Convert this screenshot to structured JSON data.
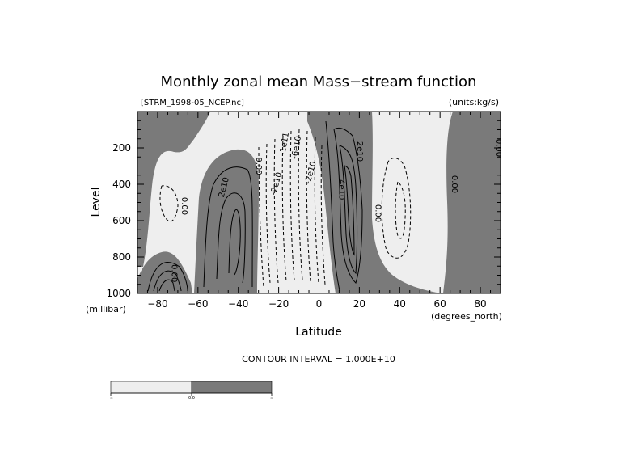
{
  "chart_data": {
    "type": "contour",
    "title": "Monthly zonal mean Mass−stream function",
    "file_label": "[STRM_1998-05_NCEP.nc]",
    "units_label": "(units:kg/s)",
    "xlabel": "Latitude",
    "x_unit_label": "(degrees_north)",
    "ylabel": "Level",
    "y_unit_label": "(millibar)",
    "xlim": [
      -90,
      90
    ],
    "ylim": [
      1000,
      0
    ],
    "x_ticks": [
      -80,
      -60,
      -40,
      -20,
      0,
      20,
      40,
      60,
      80
    ],
    "y_ticks": [
      200,
      400,
      600,
      800,
      1000
    ],
    "contour_interval_text": "CONTOUR INTERVAL = 1.000E+10",
    "fill_colors": {
      "negative": "#eeeeee",
      "positive": "#7a7a7a"
    },
    "colorbar": {
      "min_label": "-∞",
      "mid_label": "0.0",
      "max_label": "∞"
    },
    "contour_labels": [
      {
        "text": "0.00",
        "lat": -68,
        "level": 520,
        "rotate": 90
      },
      {
        "text": "0.00",
        "lat": -73,
        "level": 890,
        "rotate": 90
      },
      {
        "text": "2e10",
        "lat": -46,
        "level": 420,
        "rotate": -75
      },
      {
        "text": "0.00",
        "lat": -31,
        "level": 300,
        "rotate": 90
      },
      {
        "text": "-2e10",
        "lat": -20,
        "level": 400,
        "rotate": -75
      },
      {
        "text": "-1e11",
        "lat": -16,
        "level": 180,
        "rotate": -80
      },
      {
        "text": "-6e10",
        "lat": -10,
        "level": 200,
        "rotate": -80
      },
      {
        "text": "-2e10",
        "lat": -3,
        "level": 340,
        "rotate": -75
      },
      {
        "text": "2e10",
        "lat": 19,
        "level": 220,
        "rotate": 90
      },
      {
        "text": "4e10",
        "lat": 10,
        "level": 430,
        "rotate": 90
      },
      {
        "text": "0.00",
        "lat": 28,
        "level": 560,
        "rotate": 90
      },
      {
        "text": "0.00",
        "lat": 66,
        "level": 400,
        "rotate": 90
      },
      {
        "text": "0.00",
        "lat": 88,
        "level": 200,
        "rotate": 90
      }
    ]
  }
}
